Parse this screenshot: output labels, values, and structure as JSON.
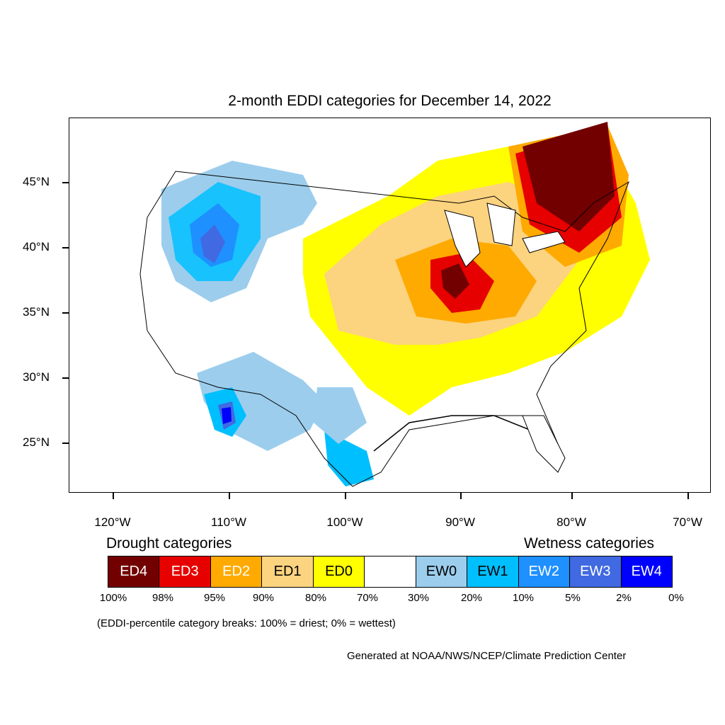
{
  "title": "2-month EDDI categories for December 14, 2022",
  "y_axis_labels": [
    "45°N",
    "40°N",
    "35°N",
    "30°N",
    "25°N"
  ],
  "x_axis_labels": [
    "120°W",
    "110°W",
    "100°W",
    "90°W",
    "80°W",
    "70°W"
  ],
  "legend": {
    "drought_heading": "Drought categories",
    "wetness_heading": "Wetness categories",
    "categories": [
      {
        "label": "ED4",
        "color": "#730000",
        "text_color": "#ffffff"
      },
      {
        "label": "ED3",
        "color": "#e60000",
        "text_color": "#ffffff"
      },
      {
        "label": "ED2",
        "color": "#ffaa00",
        "text_color": "#ffffff"
      },
      {
        "label": "ED1",
        "color": "#fcd37f",
        "text_color": "#000000"
      },
      {
        "label": "ED0",
        "color": "#ffff00",
        "text_color": "#000000"
      },
      {
        "label": "",
        "color": "#ffffff",
        "text_color": "#000000"
      },
      {
        "label": "EW0",
        "color": "#9ccded",
        "text_color": "#000000"
      },
      {
        "label": "EW1",
        "color": "#00bfff",
        "text_color": "#000000"
      },
      {
        "label": "EW2",
        "color": "#1e90ff",
        "text_color": "#ffffff"
      },
      {
        "label": "EW3",
        "color": "#4169e1",
        "text_color": "#ffffff"
      },
      {
        "label": "EW4",
        "color": "#0000ff",
        "text_color": "#ffffff"
      }
    ],
    "percentiles": [
      "100%",
      "98%",
      "95%",
      "90%",
      "80%",
      "70%",
      "30%",
      "20%",
      "10%",
      "5%",
      "2%",
      "0%"
    ]
  },
  "note": "(EDDI-percentile category breaks: 100% = driest; 0% = wettest)",
  "credit": "Generated at NOAA/NWS/NCEP/Climate Prediction Center"
}
